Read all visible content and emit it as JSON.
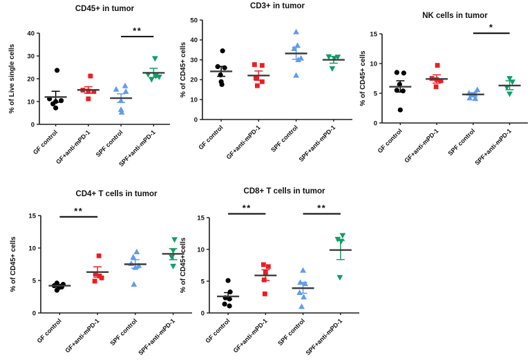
{
  "figure": {
    "background": "#ffffff",
    "axis_color": "#1a1a1a",
    "mean_line_color": "#3c3c3c",
    "group_labels": [
      "GF control",
      "GF+anti-mPD-1",
      "SPF control",
      "SPF+anti-mPD-1"
    ],
    "group_colors": [
      "#000000",
      "#ee1c23",
      "#5f9cf0",
      "#0da067"
    ],
    "group_markers": [
      "circle",
      "square",
      "triangle-up",
      "triangle-down"
    ]
  },
  "chart_data": [
    {
      "id": "cd45",
      "type": "scatter",
      "title": "CD45+ in tumor",
      "xlabel": "",
      "ylabel": "% of Live single cells",
      "ylim": [
        0,
        40
      ],
      "yticks": [
        0,
        10,
        20,
        30,
        40
      ],
      "categories": [
        "GF control",
        "GF+anti-mPD-1",
        "SPF control",
        "SPF+anti-mPD-1"
      ],
      "series": [
        {
          "name": "GF control",
          "values": [
            23.7,
            11.2,
            10.4,
            10.0,
            9.0,
            7.2
          ],
          "jitter": [
            2,
            -9,
            8,
            0,
            -4,
            0
          ],
          "mean": 12.0,
          "err_low": 9.7,
          "err_high": 14.5
        },
        {
          "name": "GF+anti-mPD-1",
          "values": [
            21.2,
            15.0,
            14.6,
            14.4,
            11.2
          ],
          "jitter": [
            3,
            -8,
            0,
            8,
            0
          ],
          "mean": 15.1,
          "err_low": 13.6,
          "err_high": 16.5
        },
        {
          "name": "SPF control",
          "values": [
            16.9,
            15.4,
            14.4,
            10.4,
            6.5,
            5.3
          ],
          "jitter": [
            6,
            -7,
            7,
            0,
            0,
            1
          ],
          "mean": 11.5,
          "err_low": 9.6,
          "err_high": 13.4
        },
        {
          "name": "SPF+anti-mPD-1",
          "values": [
            28.9,
            21.9,
            21.2,
            20.8,
            19.7
          ],
          "jitter": [
            2,
            -8,
            3,
            8,
            -3
          ],
          "mean": 22.6,
          "err_low": 20.6,
          "err_high": 24.6
        }
      ],
      "significance": [
        {
          "from": 2,
          "to": 3,
          "y": 38.5,
          "label": "**"
        }
      ]
    },
    {
      "id": "cd3",
      "type": "scatter",
      "title": "CD3+ in tumor",
      "xlabel": "",
      "ylabel": "% of CD45+ cells",
      "ylim": [
        0,
        50
      ],
      "yticks": [
        0,
        10,
        20,
        30,
        40,
        50
      ],
      "categories": [
        "GF control",
        "GF+anti-mPD-1",
        "SPF control",
        "SPF+anti-mPD-1"
      ],
      "series": [
        {
          "name": "GF control",
          "values": [
            34.5,
            26.6,
            26.0,
            22.4,
            19.0,
            17.6
          ],
          "jitter": [
            2,
            -5,
            5,
            -1,
            0,
            1
          ],
          "mean": 24.2,
          "err_low": 21.7,
          "err_high": 26.7
        },
        {
          "name": "GF+anti-mPD-1",
          "values": [
            27.6,
            27.2,
            20.8,
            19.0,
            17.0
          ],
          "jitter": [
            -6,
            5,
            -4,
            5,
            -2
          ],
          "mean": 22.1,
          "err_low": 19.7,
          "err_high": 24.4
        },
        {
          "name": "SPF control",
          "values": [
            44.0,
            37.2,
            35.6,
            30.8,
            30.0,
            22.2
          ],
          "jitter": [
            0,
            2,
            -3,
            7,
            3,
            0
          ],
          "mean": 33.2,
          "err_low": 30.2,
          "err_high": 36.3
        },
        {
          "name": "SPF+anti-mPD-1",
          "values": [
            31.6,
            31.4,
            30.8,
            25.6
          ],
          "jitter": [
            -7,
            6,
            1,
            -2
          ],
          "mean": 30.0,
          "err_low": 28.3,
          "err_high": 31.7
        }
      ],
      "significance": []
    },
    {
      "id": "nk",
      "type": "scatter",
      "title": "NK cells in tumor",
      "xlabel": "",
      "ylabel": "% of CD45+ cells",
      "ylim": [
        0,
        15
      ],
      "yticks": [
        0,
        5,
        10,
        15
      ],
      "categories": [
        "GF control",
        "GF+anti-mPD-1",
        "SPF control",
        "SPF+anti-mPD-1"
      ],
      "series": [
        {
          "name": "GF control",
          "values": [
            8.5,
            8.4,
            6.5,
            5.5,
            5.4,
            2.2
          ],
          "jitter": [
            -5,
            5,
            -1,
            -5,
            4,
            0
          ],
          "mean": 6.1,
          "err_low": 5.2,
          "err_high": 7.1
        },
        {
          "name": "GF+anti-mPD-1",
          "values": [
            9.7,
            7.5,
            7.3,
            7.1,
            6.1
          ],
          "jitter": [
            1,
            -7,
            0,
            6,
            -1
          ],
          "mean": 7.4,
          "err_low": 6.7,
          "err_high": 8.1
        },
        {
          "name": "SPF control",
          "values": [
            5.6,
            5.0,
            4.9,
            4.7,
            4.2,
            4.1
          ],
          "jitter": [
            6,
            -6,
            2,
            -2,
            -5,
            3
          ],
          "mean": 4.8,
          "err_low": 4.4,
          "err_high": 5.1
        },
        {
          "name": "SPF+anti-mPD-1",
          "values": [
            7.5,
            6.9,
            6.0,
            4.9
          ],
          "jitter": [
            0,
            4,
            -4,
            0
          ],
          "mean": 6.3,
          "err_low": 5.6,
          "err_high": 7.1
        }
      ],
      "significance": [
        {
          "from": 2,
          "to": 3,
          "y": 15.1,
          "label": "*"
        }
      ]
    },
    {
      "id": "cd4",
      "type": "scatter",
      "title": "CD4+ T cells in tumor",
      "xlabel": "",
      "ylabel": "% of CD45+ cells",
      "ylim": [
        0,
        15
      ],
      "yticks": [
        0,
        5,
        10,
        15
      ],
      "categories": [
        "GF control",
        "GF+anti-mPD-1",
        "SPF control",
        "SPF+anti-mPD-1"
      ],
      "series": [
        {
          "name": "GF control",
          "values": [
            4.6,
            4.4,
            4.2,
            4.0,
            3.9,
            3.5
          ],
          "jitter": [
            -4,
            5,
            -8,
            3,
            -1,
            -4
          ],
          "mean": 4.2,
          "err_low": 4.0,
          "err_high": 4.4
        },
        {
          "name": "GF+anti-mPD-1",
          "values": [
            8.8,
            6.0,
            5.7,
            5.4,
            4.9
          ],
          "jitter": [
            2,
            -3,
            3,
            6,
            -4
          ],
          "mean": 6.3,
          "err_low": 5.5,
          "err_high": 7.1
        },
        {
          "name": "SPF control",
          "values": [
            9.4,
            8.6,
            7.6,
            7.3,
            7.0,
            4.4
          ],
          "jitter": [
            2,
            -3,
            -6,
            5,
            0,
            -2
          ],
          "mean": 7.5,
          "err_low": 6.9,
          "err_high": 8.2
        },
        {
          "name": "SPF+anti-mPD-1",
          "values": [
            11.3,
            9.6,
            8.6,
            7.2
          ],
          "jitter": [
            2,
            0,
            -2,
            0
          ],
          "mean": 9.1,
          "err_low": 8.2,
          "err_high": 9.9
        }
      ],
      "significance": [
        {
          "from": 0,
          "to": 1,
          "y": 14.8,
          "label": "**"
        }
      ]
    },
    {
      "id": "cd8",
      "type": "scatter",
      "title": "CD8+ T cells in tumor",
      "xlabel": "",
      "ylabel": "% of CD45+ cells",
      "ylim": [
        0,
        15
      ],
      "yticks": [
        0,
        5,
        10,
        15
      ],
      "categories": [
        "GF control",
        "GF+anti-mPD-1",
        "SPF control",
        "SPF+anti-mPD-1"
      ],
      "series": [
        {
          "name": "GF control",
          "values": [
            5.1,
            3.3,
            2.4,
            2.2,
            1.4,
            1.1
          ],
          "jitter": [
            0,
            3,
            -4,
            2,
            -5,
            2
          ],
          "mean": 2.6,
          "err_low": 2.1,
          "err_high": 3.2
        },
        {
          "name": "GF+anti-mPD-1",
          "values": [
            7.6,
            7.3,
            6.4,
            5.2,
            3.0
          ],
          "jitter": [
            -3,
            4,
            0,
            -2,
            -1
          ],
          "mean": 5.9,
          "err_low": 5.1,
          "err_high": 6.8
        },
        {
          "name": "SPF control",
          "values": [
            6.7,
            4.8,
            4.6,
            3.2,
            2.5,
            1.0
          ],
          "jitter": [
            0,
            -4,
            3,
            -5,
            1,
            -2
          ],
          "mean": 3.9,
          "err_low": 3.1,
          "err_high": 4.8
        },
        {
          "name": "SPF+anti-mPD-1",
          "values": [
            12.2,
            11.6,
            11.3,
            5.6
          ],
          "jitter": [
            3,
            -4,
            1,
            -1
          ],
          "mean": 9.9,
          "err_low": 8.4,
          "err_high": 11.4
        }
      ],
      "significance": [
        {
          "from": 0,
          "to": 1,
          "y": 15.6,
          "label": "**"
        },
        {
          "from": 2,
          "to": 3,
          "y": 15.6,
          "label": "**"
        }
      ]
    }
  ]
}
